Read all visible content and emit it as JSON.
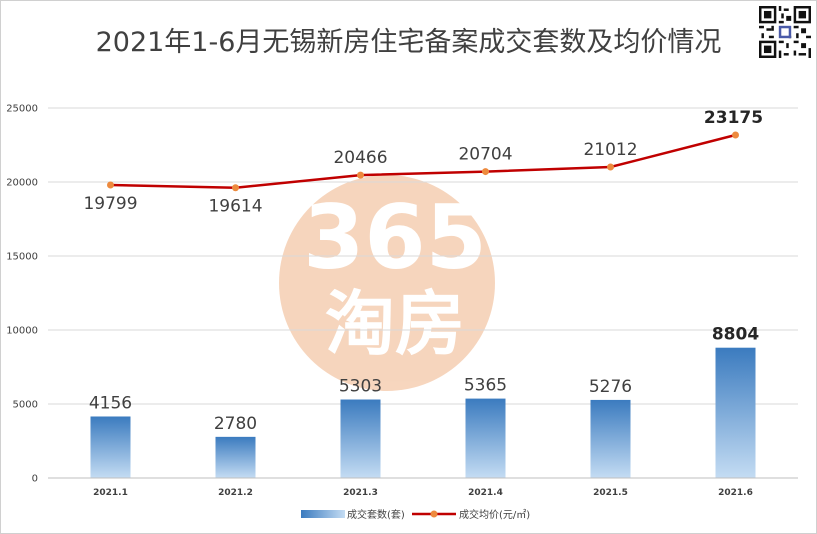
{
  "chart_data": {
    "type": "bar+line",
    "title": "2021年1-6月无锡新房住宅备案成交套数及均价情况",
    "categories": [
      "2021.1",
      "2021.2",
      "2021.3",
      "2021.4",
      "2021.5",
      "2021.6"
    ],
    "ylim": [
      0,
      25000
    ],
    "yticks": [
      0,
      5000,
      10000,
      15000,
      20000,
      25000
    ],
    "grid": true,
    "legend_position": "bottom",
    "series": [
      {
        "name": "成交套数(套)",
        "type": "bar",
        "values": [
          4156,
          2780,
          5303,
          5365,
          5276,
          8804
        ],
        "color": "#3d7fc1"
      },
      {
        "name": "成交均价(元/㎡)",
        "type": "line",
        "values": [
          19799,
          19614,
          20466,
          20704,
          21012,
          23175
        ],
        "color": "#c00000",
        "marker_color": "#ed8a3e"
      }
    ],
    "highlight_index": 5
  },
  "watermark": {
    "numerals": "365",
    "text": "淘房",
    "color": "#f4c8a8"
  }
}
